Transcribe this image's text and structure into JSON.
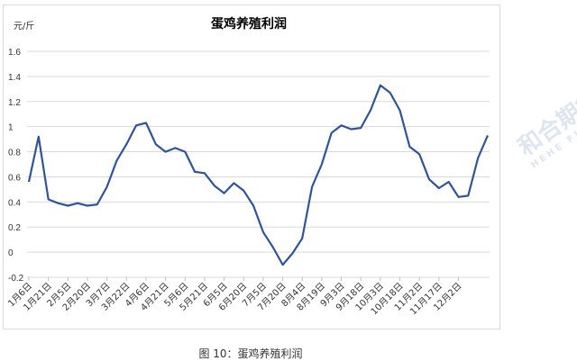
{
  "chart": {
    "title": "蛋鸡养殖利润",
    "unit_label": "元/斤",
    "caption": "图 10：蛋鸡养殖利润",
    "watermark": "和合期货",
    "watermark_sub": "HEHE FUTURES",
    "line_color": "#2f5597"
  },
  "chart_data": {
    "type": "line",
    "title": "蛋鸡养殖利润",
    "xlabel": "",
    "ylabel": "元/斤",
    "ylim": [
      -0.2,
      1.6
    ],
    "yticks": [
      -0.2,
      0,
      0.2,
      0.4,
      0.6,
      0.8,
      1,
      1.2,
      1.4,
      1.6
    ],
    "grid": true,
    "legend": "none",
    "x_tick_labels": [
      "1月6日",
      "1月21日",
      "2月5日",
      "2月20日",
      "3月7日",
      "3月22日",
      "4月6日",
      "4月21日",
      "5月6日",
      "5月21日",
      "6月5日",
      "6月20日",
      "7月5日",
      "7月20日",
      "8月4日",
      "8月19日",
      "9月3日",
      "9月18日",
      "10月3日",
      "10月18日",
      "11月2日",
      "11月17日",
      "12月2日"
    ],
    "series": [
      {
        "name": "蛋鸡养殖利润",
        "values": [
          0.56,
          0.92,
          0.42,
          0.39,
          0.37,
          0.39,
          0.37,
          0.38,
          0.52,
          0.73,
          0.86,
          1.01,
          1.03,
          0.86,
          0.8,
          0.83,
          0.8,
          0.64,
          0.63,
          0.53,
          0.47,
          0.55,
          0.49,
          0.37,
          0.16,
          0.04,
          -0.1,
          -0.01,
          0.11,
          0.52,
          0.7,
          0.95,
          1.01,
          0.98,
          0.99,
          1.13,
          1.33,
          1.27,
          1.13,
          0.84,
          0.78,
          0.58,
          0.51,
          0.56,
          0.44,
          0.45,
          0.75,
          0.93
        ]
      }
    ]
  }
}
